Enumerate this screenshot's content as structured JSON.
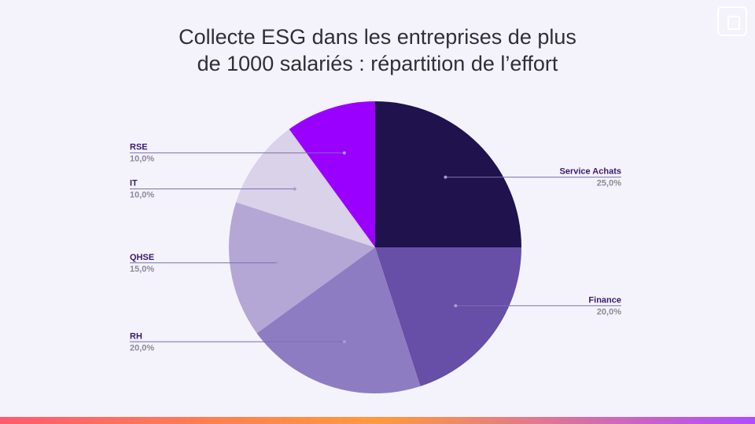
{
  "chart_data": {
    "type": "pie",
    "title_lines": [
      "Collecte ESG dans les entreprises de plus",
      "de 1000 salariés : répartition de l’effort"
    ],
    "slices": [
      {
        "label": "Service Achats",
        "value": 25.0,
        "value_label": "25,0%",
        "color": "#20124d",
        "side": "right"
      },
      {
        "label": "Finance",
        "value": 20.0,
        "value_label": "20,0%",
        "color": "#674ea7",
        "side": "right"
      },
      {
        "label": "RH",
        "value": 20.0,
        "value_label": "20,0%",
        "color": "#8e7cc3",
        "side": "left"
      },
      {
        "label": "QHSE",
        "value": 15.0,
        "value_label": "15,0%",
        "color": "#b4a7d6",
        "side": "left"
      },
      {
        "label": "IT",
        "value": 10.0,
        "value_label": "10,0%",
        "color": "#d9d2e9",
        "side": "left"
      },
      {
        "label": "RSE",
        "value": 10.0,
        "value_label": "10,0%",
        "color": "#9900ff",
        "side": "left"
      }
    ],
    "start_angle": "12 o'clock",
    "direction": "clockwise",
    "legend": "none"
  },
  "colors": {
    "background": "#f4f2fb",
    "label_name": "#3a1a6e",
    "label_value": "#8e8a99",
    "leader_line": "#7a6fb0"
  }
}
